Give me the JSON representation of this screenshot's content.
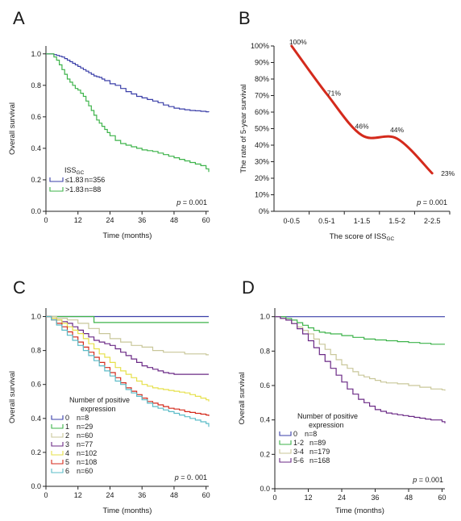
{
  "chart_data": [
    {
      "panel": "A",
      "type": "line",
      "step": true,
      "xlabel": "Time (months)",
      "ylabel": "Overall survival",
      "xlim": [
        0,
        61
      ],
      "ylim": [
        0,
        1.05
      ],
      "xticks": [
        0,
        12,
        24,
        36,
        48,
        60
      ],
      "yticks": [
        0.0,
        0.2,
        0.4,
        0.6,
        0.8,
        1.0
      ],
      "legend_title": "ISSGC",
      "legend_title_main": "ISS",
      "legend_title_sub": "GC",
      "legend_placement": "bottom-left",
      "annotation": "p = 0.001",
      "annotation_italic": "p",
      "annotation_rest": " = 0.001",
      "series": [
        {
          "name": "≤1.83",
          "n": "n=356",
          "color": "#3a3fa8",
          "x": [
            0,
            2,
            3,
            4,
            5,
            6,
            7,
            8,
            9,
            10,
            11,
            12,
            13,
            14,
            15,
            16,
            17,
            18,
            19,
            20,
            21,
            22,
            24,
            26,
            28,
            30,
            32,
            34,
            36,
            38,
            40,
            42,
            44,
            46,
            48,
            50,
            52,
            54,
            56,
            58,
            60,
            61
          ],
          "y": [
            1.0,
            1.0,
            0.995,
            0.99,
            0.985,
            0.98,
            0.97,
            0.96,
            0.95,
            0.94,
            0.93,
            0.92,
            0.91,
            0.9,
            0.89,
            0.88,
            0.87,
            0.86,
            0.855,
            0.85,
            0.84,
            0.83,
            0.81,
            0.8,
            0.78,
            0.76,
            0.745,
            0.73,
            0.72,
            0.71,
            0.7,
            0.69,
            0.675,
            0.665,
            0.655,
            0.65,
            0.645,
            0.64,
            0.638,
            0.635,
            0.632,
            0.63
          ]
        },
        {
          "name": ">1.83",
          "n": "n=88",
          "color": "#3db34a",
          "x": [
            0,
            2,
            3,
            4,
            5,
            6,
            7,
            8,
            9,
            10,
            11,
            12,
            13,
            14,
            15,
            16,
            17,
            18,
            19,
            20,
            21,
            22,
            23,
            24,
            26,
            28,
            30,
            32,
            34,
            36,
            38,
            40,
            42,
            44,
            46,
            48,
            50,
            52,
            54,
            56,
            58,
            60,
            61
          ],
          "y": [
            1.0,
            1.0,
            0.98,
            0.96,
            0.93,
            0.9,
            0.87,
            0.84,
            0.82,
            0.8,
            0.78,
            0.77,
            0.75,
            0.73,
            0.7,
            0.67,
            0.64,
            0.61,
            0.58,
            0.56,
            0.54,
            0.52,
            0.5,
            0.48,
            0.45,
            0.43,
            0.42,
            0.41,
            0.4,
            0.39,
            0.385,
            0.38,
            0.37,
            0.36,
            0.35,
            0.34,
            0.33,
            0.32,
            0.31,
            0.3,
            0.29,
            0.27,
            0.25
          ]
        }
      ]
    },
    {
      "panel": "B",
      "type": "line",
      "xlabel": "The score of ISSGC",
      "xlabel_main": "The score of ISS",
      "xlabel_sub": "GC",
      "ylabel": "The rate of 5-year survival",
      "categories": [
        "0-0.5",
        "0.5-1",
        "1-1.5",
        "1.5-2",
        "2-2.5"
      ],
      "values": [
        100,
        71,
        46,
        44,
        23
      ],
      "point_labels": [
        "100%",
        "71%",
        "46%",
        "44%",
        "23%"
      ],
      "ylim": [
        0,
        100
      ],
      "yticks": [
        "0%",
        "10%",
        "20%",
        "30%",
        "40%",
        "50%",
        "60%",
        "70%",
        "80%",
        "90%",
        "100%"
      ],
      "annotation": "p = 0.001",
      "annotation_italic": "p",
      "annotation_rest": " = 0.001",
      "color": "#d42a1c"
    },
    {
      "panel": "C",
      "type": "line",
      "step": true,
      "xlabel": "Time (months)",
      "ylabel": "Overall survival",
      "xlim": [
        0,
        61
      ],
      "ylim": [
        0,
        1.05
      ],
      "xticks": [
        0,
        12,
        24,
        36,
        48,
        60
      ],
      "yticks": [
        0.0,
        0.2,
        0.4,
        0.6,
        0.8,
        1.0
      ],
      "legend_title": "Number of positive expression",
      "legend_title_lines": [
        "Number of positive",
        "expression"
      ],
      "legend_placement": "bottom-left",
      "annotation": "p = 0. 001",
      "annotation_italic": "p",
      "annotation_rest": " = 0. 001",
      "series": [
        {
          "name": "0",
          "n": "n=8",
          "color": "#3a3fa8",
          "x": [
            0,
            61
          ],
          "y": [
            1.0,
            1.0
          ]
        },
        {
          "name": "1",
          "n": "n=29",
          "color": "#3db34a",
          "x": [
            0,
            17,
            18,
            61
          ],
          "y": [
            1.0,
            1.0,
            0.965,
            0.965
          ]
        },
        {
          "name": "2",
          "n": "n=60",
          "color": "#c9c79a",
          "x": [
            0,
            4,
            8,
            12,
            16,
            20,
            24,
            28,
            32,
            36,
            40,
            44,
            48,
            52,
            56,
            60,
            61
          ],
          "y": [
            1.0,
            0.99,
            0.98,
            0.96,
            0.93,
            0.9,
            0.87,
            0.85,
            0.83,
            0.82,
            0.8,
            0.79,
            0.79,
            0.78,
            0.78,
            0.775,
            0.775
          ]
        },
        {
          "name": "3",
          "n": "n=77",
          "color": "#6b2a86",
          "x": [
            0,
            2,
            4,
            6,
            8,
            10,
            12,
            14,
            16,
            18,
            20,
            22,
            24,
            26,
            28,
            30,
            32,
            34,
            36,
            38,
            40,
            42,
            44,
            46,
            48,
            50,
            61
          ],
          "y": [
            1.0,
            0.99,
            0.98,
            0.97,
            0.96,
            0.94,
            0.92,
            0.9,
            0.88,
            0.86,
            0.85,
            0.84,
            0.83,
            0.81,
            0.79,
            0.77,
            0.75,
            0.73,
            0.71,
            0.7,
            0.69,
            0.68,
            0.67,
            0.665,
            0.66,
            0.66,
            0.66
          ]
        },
        {
          "name": "4",
          "n": "n=102",
          "color": "#e6e04a",
          "x": [
            0,
            2,
            4,
            6,
            8,
            10,
            12,
            14,
            16,
            18,
            20,
            22,
            24,
            26,
            28,
            30,
            32,
            34,
            36,
            38,
            40,
            42,
            44,
            46,
            48,
            50,
            52,
            54,
            56,
            58,
            60,
            61
          ],
          "y": [
            1.0,
            0.99,
            0.98,
            0.96,
            0.94,
            0.92,
            0.9,
            0.87,
            0.84,
            0.81,
            0.78,
            0.76,
            0.73,
            0.7,
            0.68,
            0.66,
            0.64,
            0.62,
            0.6,
            0.59,
            0.58,
            0.575,
            0.57,
            0.565,
            0.56,
            0.555,
            0.55,
            0.54,
            0.53,
            0.52,
            0.51,
            0.5
          ]
        },
        {
          "name": "5",
          "n": "n=108",
          "color": "#d42a1c",
          "x": [
            0,
            2,
            4,
            6,
            8,
            10,
            12,
            14,
            16,
            18,
            20,
            22,
            24,
            26,
            28,
            30,
            32,
            34,
            36,
            38,
            40,
            42,
            44,
            46,
            48,
            50,
            52,
            54,
            56,
            58,
            60,
            61
          ],
          "y": [
            1.0,
            0.98,
            0.96,
            0.94,
            0.91,
            0.88,
            0.85,
            0.82,
            0.79,
            0.76,
            0.73,
            0.7,
            0.67,
            0.64,
            0.61,
            0.58,
            0.56,
            0.54,
            0.52,
            0.5,
            0.49,
            0.48,
            0.47,
            0.46,
            0.455,
            0.45,
            0.44,
            0.435,
            0.43,
            0.425,
            0.42,
            0.415
          ]
        },
        {
          "name": "6",
          "n": "n=60",
          "color": "#5bbcc8",
          "x": [
            0,
            2,
            4,
            6,
            8,
            10,
            12,
            14,
            16,
            18,
            20,
            22,
            24,
            26,
            28,
            30,
            32,
            34,
            36,
            38,
            40,
            42,
            44,
            46,
            48,
            50,
            52,
            54,
            56,
            58,
            60,
            61
          ],
          "y": [
            1.0,
            0.98,
            0.95,
            0.92,
            0.89,
            0.86,
            0.83,
            0.8,
            0.77,
            0.74,
            0.71,
            0.68,
            0.65,
            0.62,
            0.6,
            0.57,
            0.55,
            0.53,
            0.51,
            0.49,
            0.47,
            0.46,
            0.45,
            0.44,
            0.43,
            0.42,
            0.41,
            0.4,
            0.39,
            0.38,
            0.37,
            0.35
          ]
        }
      ]
    },
    {
      "panel": "D",
      "type": "line",
      "step": true,
      "xlabel": "Time (months)",
      "ylabel": "Overall survival",
      "xlim": [
        0,
        61
      ],
      "ylim": [
        0,
        1.05
      ],
      "xticks": [
        0,
        12,
        24,
        36,
        48,
        60
      ],
      "yticks": [
        0.0,
        0.2,
        0.4,
        0.6,
        0.8,
        1.0
      ],
      "legend_title": "Number of positive expression",
      "legend_title_lines": [
        "Number of positive",
        "expression"
      ],
      "legend_placement": "bottom-left",
      "annotation": "p = 0.001",
      "annotation_italic": "p",
      "annotation_rest": " = 0.001",
      "series": [
        {
          "name": "0",
          "n": "n=8",
          "color": "#3a3fa8",
          "x": [
            0,
            61
          ],
          "y": [
            1.0,
            1.0
          ]
        },
        {
          "name": "1-2",
          "n": "n=89",
          "color": "#3db34a",
          "x": [
            0,
            4,
            6,
            8,
            10,
            12,
            14,
            16,
            18,
            20,
            24,
            28,
            32,
            36,
            40,
            44,
            48,
            52,
            56,
            60,
            61
          ],
          "y": [
            1.0,
            0.99,
            0.98,
            0.965,
            0.95,
            0.935,
            0.92,
            0.91,
            0.905,
            0.9,
            0.89,
            0.88,
            0.87,
            0.865,
            0.86,
            0.855,
            0.85,
            0.845,
            0.84,
            0.84,
            0.84
          ]
        },
        {
          "name": "3-4",
          "n": "n=179",
          "color": "#c9c79a",
          "x": [
            0,
            2,
            4,
            6,
            8,
            10,
            12,
            14,
            16,
            18,
            20,
            22,
            24,
            26,
            28,
            30,
            32,
            34,
            36,
            38,
            40,
            44,
            48,
            52,
            56,
            60,
            61
          ],
          "y": [
            1.0,
            0.99,
            0.98,
            0.96,
            0.94,
            0.92,
            0.9,
            0.87,
            0.84,
            0.81,
            0.78,
            0.75,
            0.72,
            0.7,
            0.68,
            0.66,
            0.65,
            0.64,
            0.63,
            0.62,
            0.615,
            0.61,
            0.6,
            0.59,
            0.58,
            0.575,
            0.57
          ]
        },
        {
          "name": "5-6",
          "n": "n=168",
          "color": "#6b2a86",
          "x": [
            0,
            2,
            4,
            6,
            8,
            10,
            12,
            14,
            16,
            18,
            20,
            22,
            24,
            26,
            28,
            30,
            32,
            34,
            36,
            38,
            40,
            42,
            44,
            46,
            48,
            50,
            52,
            54,
            56,
            58,
            60,
            61
          ],
          "y": [
            1.0,
            0.99,
            0.98,
            0.96,
            0.93,
            0.9,
            0.86,
            0.82,
            0.78,
            0.74,
            0.7,
            0.66,
            0.62,
            0.58,
            0.55,
            0.52,
            0.5,
            0.48,
            0.46,
            0.45,
            0.44,
            0.435,
            0.43,
            0.425,
            0.42,
            0.415,
            0.41,
            0.405,
            0.4,
            0.4,
            0.39,
            0.38
          ]
        }
      ]
    }
  ]
}
